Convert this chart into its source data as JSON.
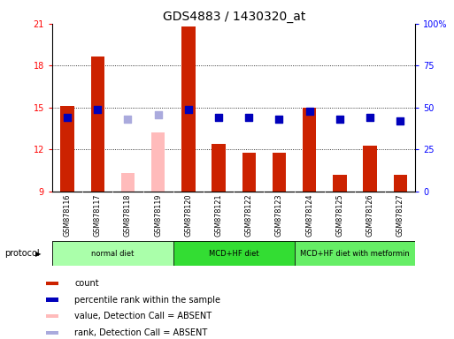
{
  "title": "GDS4883 / 1430320_at",
  "samples": [
    "GSM878116",
    "GSM878117",
    "GSM878118",
    "GSM878119",
    "GSM878120",
    "GSM878121",
    "GSM878122",
    "GSM878123",
    "GSM878124",
    "GSM878125",
    "GSM878126",
    "GSM878127"
  ],
  "bar_values": [
    15.1,
    18.65,
    10.3,
    13.2,
    20.8,
    12.4,
    11.8,
    11.8,
    15.0,
    10.2,
    12.3,
    10.2
  ],
  "bar_absent": [
    false,
    false,
    true,
    true,
    false,
    false,
    false,
    false,
    false,
    false,
    false,
    false
  ],
  "percentile_values": [
    44,
    49,
    43,
    46,
    49,
    44,
    44,
    43,
    48,
    43,
    44,
    42
  ],
  "percentile_absent": [
    false,
    false,
    true,
    true,
    false,
    false,
    false,
    false,
    false,
    false,
    false,
    false
  ],
  "ylim_left": [
    9,
    21
  ],
  "ylim_right": [
    0,
    100
  ],
  "yticks_left": [
    9,
    12,
    15,
    18,
    21
  ],
  "yticks_right": [
    0,
    25,
    50,
    75,
    100
  ],
  "ytick_labels_right": [
    "0",
    "25",
    "50",
    "75",
    "100%"
  ],
  "groups": [
    {
      "label": "normal diet",
      "start": 0,
      "end": 3,
      "color": "#aaffaa"
    },
    {
      "label": "MCD+HF diet",
      "start": 4,
      "end": 7,
      "color": "#33dd33"
    },
    {
      "label": "MCD+HF diet with metformin",
      "start": 8,
      "end": 11,
      "color": "#66ee66"
    }
  ],
  "bar_color_present": "#cc2200",
  "bar_color_absent": "#ffbbbb",
  "dot_color_present": "#0000bb",
  "dot_color_absent": "#aaaadd",
  "bar_width": 0.45,
  "dot_size": 28,
  "background_color": "#ffffff",
  "plot_bg_color": "#ffffff",
  "tick_bg_color": "#cccccc",
  "legend_items": [
    {
      "label": "count",
      "color": "#cc2200"
    },
    {
      "label": "percentile rank within the sample",
      "color": "#0000bb"
    },
    {
      "label": "value, Detection Call = ABSENT",
      "color": "#ffbbbb"
    },
    {
      "label": "rank, Detection Call = ABSENT",
      "color": "#aaaadd"
    }
  ]
}
